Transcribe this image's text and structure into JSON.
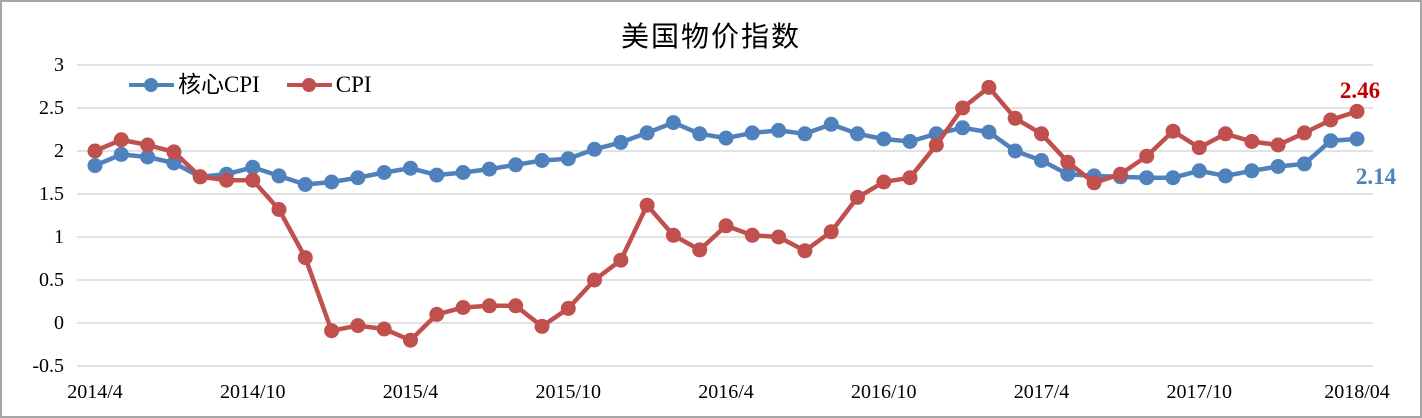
{
  "chart_data": {
    "type": "line",
    "title": "美国物价指数",
    "x": [
      "2014/4",
      "2014/5",
      "2014/6",
      "2014/7",
      "2014/8",
      "2014/9",
      "2014/10",
      "2014/11",
      "2014/12",
      "2015/1",
      "2015/2",
      "2015/3",
      "2015/4",
      "2015/5",
      "2015/6",
      "2015/7",
      "2015/8",
      "2015/9",
      "2015/10",
      "2015/11",
      "2015/12",
      "2016/1",
      "2016/2",
      "2016/3",
      "2016/4",
      "2016/5",
      "2016/6",
      "2016/7",
      "2016/8",
      "2016/9",
      "2016/10",
      "2016/11",
      "2016/12",
      "2017/1",
      "2017/2",
      "2017/3",
      "2017/4",
      "2017/5",
      "2017/6",
      "2017/7",
      "2017/8",
      "2017/9",
      "2017/10",
      "2017/11",
      "2017/12",
      "2018/1",
      "2018/2",
      "2018/3",
      "2018/4"
    ],
    "x_tick_indices": [
      0,
      6,
      12,
      18,
      24,
      30,
      36,
      42,
      48
    ],
    "x_tick_labels": [
      "2014/4",
      "2014/10",
      "2015/4",
      "2015/10",
      "2016/4",
      "2016/10",
      "2017/4",
      "2017/10",
      "2018/04"
    ],
    "y_tick_labels": [
      "3",
      "2.5",
      "2",
      "1.5",
      "1",
      "0.5",
      "0",
      "-0.5"
    ],
    "y_tick_values": [
      3,
      2.5,
      2,
      1.5,
      1,
      0.5,
      0,
      -0.5
    ],
    "ylim": [
      -0.5,
      3
    ],
    "grid": "horizontal",
    "gridline_color": "#d9d9d9",
    "legend_position": "top-left-inside",
    "series": [
      {
        "name": "核心CPI",
        "color": "#4f81bd",
        "end_label": "2.14",
        "end_label_color": "#4f81bd",
        "values": [
          1.83,
          1.96,
          1.93,
          1.86,
          1.7,
          1.73,
          1.81,
          1.71,
          1.61,
          1.64,
          1.69,
          1.75,
          1.8,
          1.72,
          1.75,
          1.79,
          1.84,
          1.89,
          1.91,
          2.02,
          2.1,
          2.21,
          2.33,
          2.2,
          2.15,
          2.21,
          2.24,
          2.2,
          2.31,
          2.2,
          2.14,
          2.11,
          2.2,
          2.27,
          2.22,
          2.0,
          1.89,
          1.73,
          1.71,
          1.7,
          1.69,
          1.69,
          1.77,
          1.71,
          1.77,
          1.82,
          1.85,
          2.12,
          2.14
        ]
      },
      {
        "name": "CPI",
        "color": "#c0504d",
        "end_label": "2.46",
        "end_label_color": "#c00000",
        "values": [
          2.0,
          2.13,
          2.07,
          1.99,
          1.7,
          1.66,
          1.66,
          1.32,
          0.76,
          -0.09,
          -0.03,
          -0.07,
          -0.2,
          0.1,
          0.18,
          0.2,
          0.2,
          -0.04,
          0.17,
          0.5,
          0.73,
          1.37,
          1.02,
          0.85,
          1.13,
          1.02,
          1.0,
          0.84,
          1.06,
          1.46,
          1.64,
          1.69,
          2.07,
          2.5,
          2.74,
          2.38,
          2.2,
          1.87,
          1.63,
          1.73,
          1.94,
          2.23,
          2.04,
          2.2,
          2.11,
          2.07,
          2.21,
          2.36,
          2.46
        ]
      }
    ]
  }
}
